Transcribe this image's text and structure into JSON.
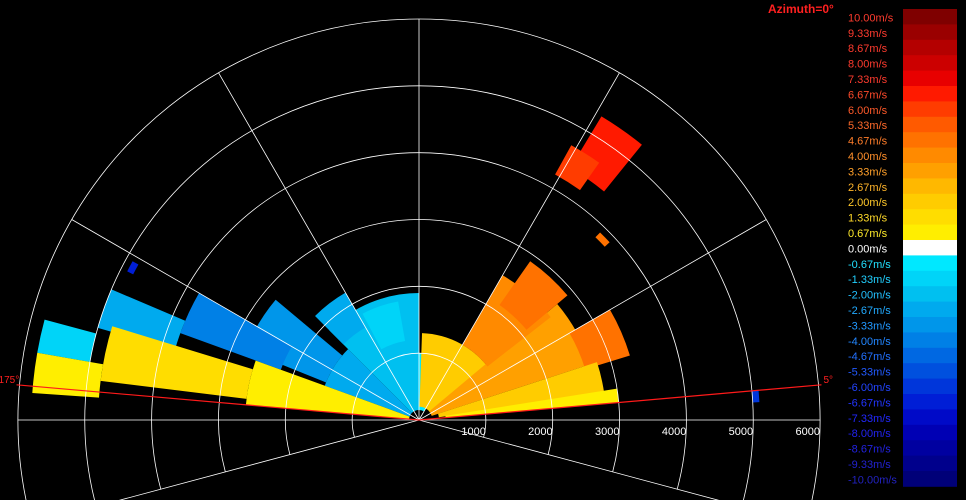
{
  "chart_data": {
    "type": "heatmap",
    "title": "Azimuth=0°",
    "units": "m/s",
    "range_ticks": [
      {
        "value": 1000,
        "label": "1000"
      },
      {
        "value": 2000,
        "label": "2000"
      },
      {
        "value": 3000,
        "label": "3000"
      },
      {
        "value": 4000,
        "label": "4000"
      },
      {
        "value": 5000,
        "label": "5000"
      },
      {
        "value": 6000,
        "label": "6000"
      }
    ],
    "range_max": 6000,
    "angle_markers": [
      {
        "angle": 5,
        "label": "5°"
      },
      {
        "angle": 175,
        "label": "175°"
      }
    ],
    "spoke_angles": [
      -15,
      0,
      30,
      60,
      90,
      120,
      150,
      180,
      195
    ],
    "colorbar": [
      {
        "value": 10.0,
        "label": "10.00m/s",
        "color": "#7f0000",
        "text_color": "#ff3b2e"
      },
      {
        "value": 9.33,
        "label": "9.33m/s",
        "color": "#9a0000",
        "text_color": "#ff3b2e"
      },
      {
        "value": 8.67,
        "label": "8.67m/s",
        "color": "#b40000",
        "text_color": "#ff3b2e"
      },
      {
        "value": 8.0,
        "label": "8.00m/s",
        "color": "#cc0000",
        "text_color": "#ff3b2e"
      },
      {
        "value": 7.33,
        "label": "7.33m/s",
        "color": "#e80000",
        "text_color": "#ff3b2e"
      },
      {
        "value": 6.67,
        "label": "6.67m/s",
        "color": "#ff1a00",
        "text_color": "#ff4a2a"
      },
      {
        "value": 6.0,
        "label": "6.00m/s",
        "color": "#ff3c00",
        "text_color": "#ff5a2a"
      },
      {
        "value": 5.33,
        "label": "5.33m/s",
        "color": "#ff5a00",
        "text_color": "#ff6a2a"
      },
      {
        "value": 4.67,
        "label": "4.67m/s",
        "color": "#ff7200",
        "text_color": "#ff7d2a"
      },
      {
        "value": 4.0,
        "label": "4.00m/s",
        "color": "#ff8a00",
        "text_color": "#ff8f2a"
      },
      {
        "value": 3.33,
        "label": "3.33m/s",
        "color": "#ffa000",
        "text_color": "#ffa02a"
      },
      {
        "value": 2.67,
        "label": "2.67m/s",
        "color": "#ffb800",
        "text_color": "#ffb42a"
      },
      {
        "value": 2.0,
        "label": "2.00m/s",
        "color": "#ffcc00",
        "text_color": "#ffc82a"
      },
      {
        "value": 1.33,
        "label": "1.33m/s",
        "color": "#ffdd00",
        "text_color": "#ffda2a"
      },
      {
        "value": 0.67,
        "label": "0.67m/s",
        "color": "#ffee00",
        "text_color": "#ffea2a"
      },
      {
        "value": 0.0,
        "label": "0.00m/s",
        "color": "#ffffff",
        "text_color": "#ffffff"
      },
      {
        "value": -0.67,
        "label": "-0.67m/s",
        "color": "#00e8ff",
        "text_color": "#22e0ff"
      },
      {
        "value": -1.33,
        "label": "-1.33m/s",
        "color": "#00d4f8",
        "text_color": "#22d0ff"
      },
      {
        "value": -2.0,
        "label": "-2.00m/s",
        "color": "#00c0f0",
        "text_color": "#22c0ff"
      },
      {
        "value": -2.67,
        "label": "-2.67m/s",
        "color": "#00aaee",
        "text_color": "#22aaff"
      },
      {
        "value": -3.33,
        "label": "-3.33m/s",
        "color": "#0096ea",
        "text_color": "#2298ff"
      },
      {
        "value": -4.0,
        "label": "-4.00m/s",
        "color": "#0080e6",
        "text_color": "#2286ff"
      },
      {
        "value": -4.67,
        "label": "-4.67m/s",
        "color": "#0068e2",
        "text_color": "#2270ff"
      },
      {
        "value": -5.33,
        "label": "-5.33m/s",
        "color": "#0050de",
        "text_color": "#225aff"
      },
      {
        "value": -6.0,
        "label": "-6.00m/s",
        "color": "#0036da",
        "text_color": "#2244ff"
      },
      {
        "value": -6.67,
        "label": "-6.67m/s",
        "color": "#001ed6",
        "text_color": "#2234ff"
      },
      {
        "value": -7.33,
        "label": "-7.33m/s",
        "color": "#000ac8",
        "text_color": "#2228ff"
      },
      {
        "value": -8.0,
        "label": "-8.00m/s",
        "color": "#0000b4",
        "text_color": "#2222f0"
      },
      {
        "value": -8.67,
        "label": "-8.67m/s",
        "color": "#0000a0",
        "text_color": "#2222e0"
      },
      {
        "value": -9.33,
        "label": "-9.33m/s",
        "color": "#00008c",
        "text_color": "#2222d0"
      },
      {
        "value": -10.0,
        "label": "-10.00m/s",
        "color": "#000078",
        "text_color": "#2222c0"
      }
    ],
    "cells": [
      {
        "r0": 150,
        "r1": 1900,
        "a0": 90,
        "a1": 135,
        "v": -2.0
      },
      {
        "r0": 150,
        "r1": 1500,
        "a0": 135,
        "a1": 160,
        "v": -2.67
      },
      {
        "r0": 1500,
        "r1": 2800,
        "a0": 140,
        "a1": 158,
        "v": -3.33
      },
      {
        "r0": 2200,
        "r1": 3800,
        "a0": 150,
        "a1": 160,
        "v": -4.0
      },
      {
        "r0": 3800,
        "r1": 5000,
        "a0": 157,
        "a1": 164,
        "v": -2.67
      },
      {
        "r0": 5000,
        "r1": 5800,
        "a0": 165,
        "a1": 170,
        "v": -1.33
      },
      {
        "r0": 1600,
        "r1": 2200,
        "a0": 120,
        "a1": 135,
        "v": -2.67
      },
      {
        "r0": 1200,
        "r1": 1800,
        "a0": 100,
        "a1": 118,
        "v": -1.33
      },
      {
        "r0": 150,
        "r1": 1000,
        "a0": 60,
        "a1": 90,
        "v": -0.67
      },
      {
        "r0": 150,
        "r1": 2600,
        "a0": 160,
        "a1": 175,
        "v": 0.67
      },
      {
        "r0": 2600,
        "r1": 4800,
        "a0": 163,
        "a1": 173,
        "v": 1.33
      },
      {
        "r0": 4800,
        "r1": 5800,
        "a0": 170,
        "a1": 176,
        "v": 0.67
      },
      {
        "r0": 200,
        "r1": 1300,
        "a0": 35,
        "a1": 88,
        "v": 2.0
      },
      {
        "r0": 200,
        "r1": 2700,
        "a0": 18,
        "a1": 40,
        "v": 3.33
      },
      {
        "r0": 1300,
        "r1": 2500,
        "a0": 38,
        "a1": 60,
        "v": 4.0
      },
      {
        "r0": 2100,
        "r1": 2900,
        "a0": 40,
        "a1": 55,
        "v": 4.67
      },
      {
        "r0": 2600,
        "r1": 3300,
        "a0": 17,
        "a1": 30,
        "v": 4.67
      },
      {
        "r0": 300,
        "r1": 2800,
        "a0": 8,
        "a1": 18,
        "v": 2.0
      },
      {
        "r0": 400,
        "r1": 3000,
        "a0": 5,
        "a1": 9,
        "v": 0.67
      },
      {
        "r0": 4400,
        "r1": 5300,
        "a0": 51,
        "a1": 59,
        "v": 6.67
      },
      {
        "r0": 4200,
        "r1": 4700,
        "a0": 55,
        "a1": 61,
        "v": 6.0
      },
      {
        "r0": 3800,
        "r1": 3900,
        "a0": 43,
        "a1": 46,
        "v": 4.67
      },
      {
        "r0": 4800,
        "r1": 4900,
        "a0": 151,
        "a1": 153,
        "v": -6.67
      },
      {
        "r0": 5000,
        "r1": 5100,
        "a0": 3,
        "a1": 5,
        "v": -6.0
      }
    ]
  }
}
